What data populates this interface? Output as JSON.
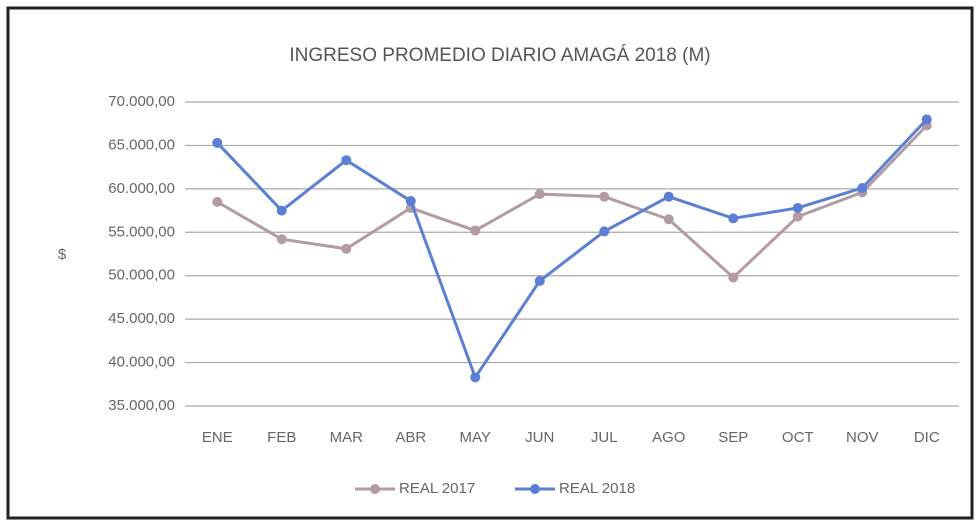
{
  "chart_data": {
    "type": "line",
    "title": "INGRESO PROMEDIO DIARIO AMAGÁ 2018  (M)",
    "y_label": "$",
    "categories": [
      "ENE",
      "FEB",
      "MAR",
      "ABR",
      "MAY",
      "JUN",
      "JUL",
      "AGO",
      "SEP",
      "OCT",
      "NOV",
      "DIC"
    ],
    "series": [
      {
        "name": "REAL 2017",
        "color": "#b39ca1",
        "values": [
          58500,
          54200,
          53100,
          57800,
          55200,
          59400,
          59100,
          56500,
          49800,
          56800,
          59600,
          67300
        ]
      },
      {
        "name": "REAL 2018",
        "color": "#5b7fd4",
        "values": [
          65300,
          57500,
          63300,
          58600,
          38300,
          49400,
          55100,
          59100,
          56600,
          57800,
          60100,
          68000
        ]
      }
    ],
    "ylim": [
      35000,
      70000
    ],
    "yticks": [
      {
        "value": 70000,
        "label": "70.000,00"
      },
      {
        "value": 65000,
        "label": "65.000,00"
      },
      {
        "value": 60000,
        "label": "60.000,00"
      },
      {
        "value": 55000,
        "label": "55.000,00"
      },
      {
        "value": 50000,
        "label": "50.000,00"
      },
      {
        "value": 45000,
        "label": "45.000,00"
      },
      {
        "value": 40000,
        "label": "40.000,00"
      },
      {
        "value": 35000,
        "label": "35.000,00"
      }
    ],
    "grid": true,
    "legend": "bottom"
  }
}
